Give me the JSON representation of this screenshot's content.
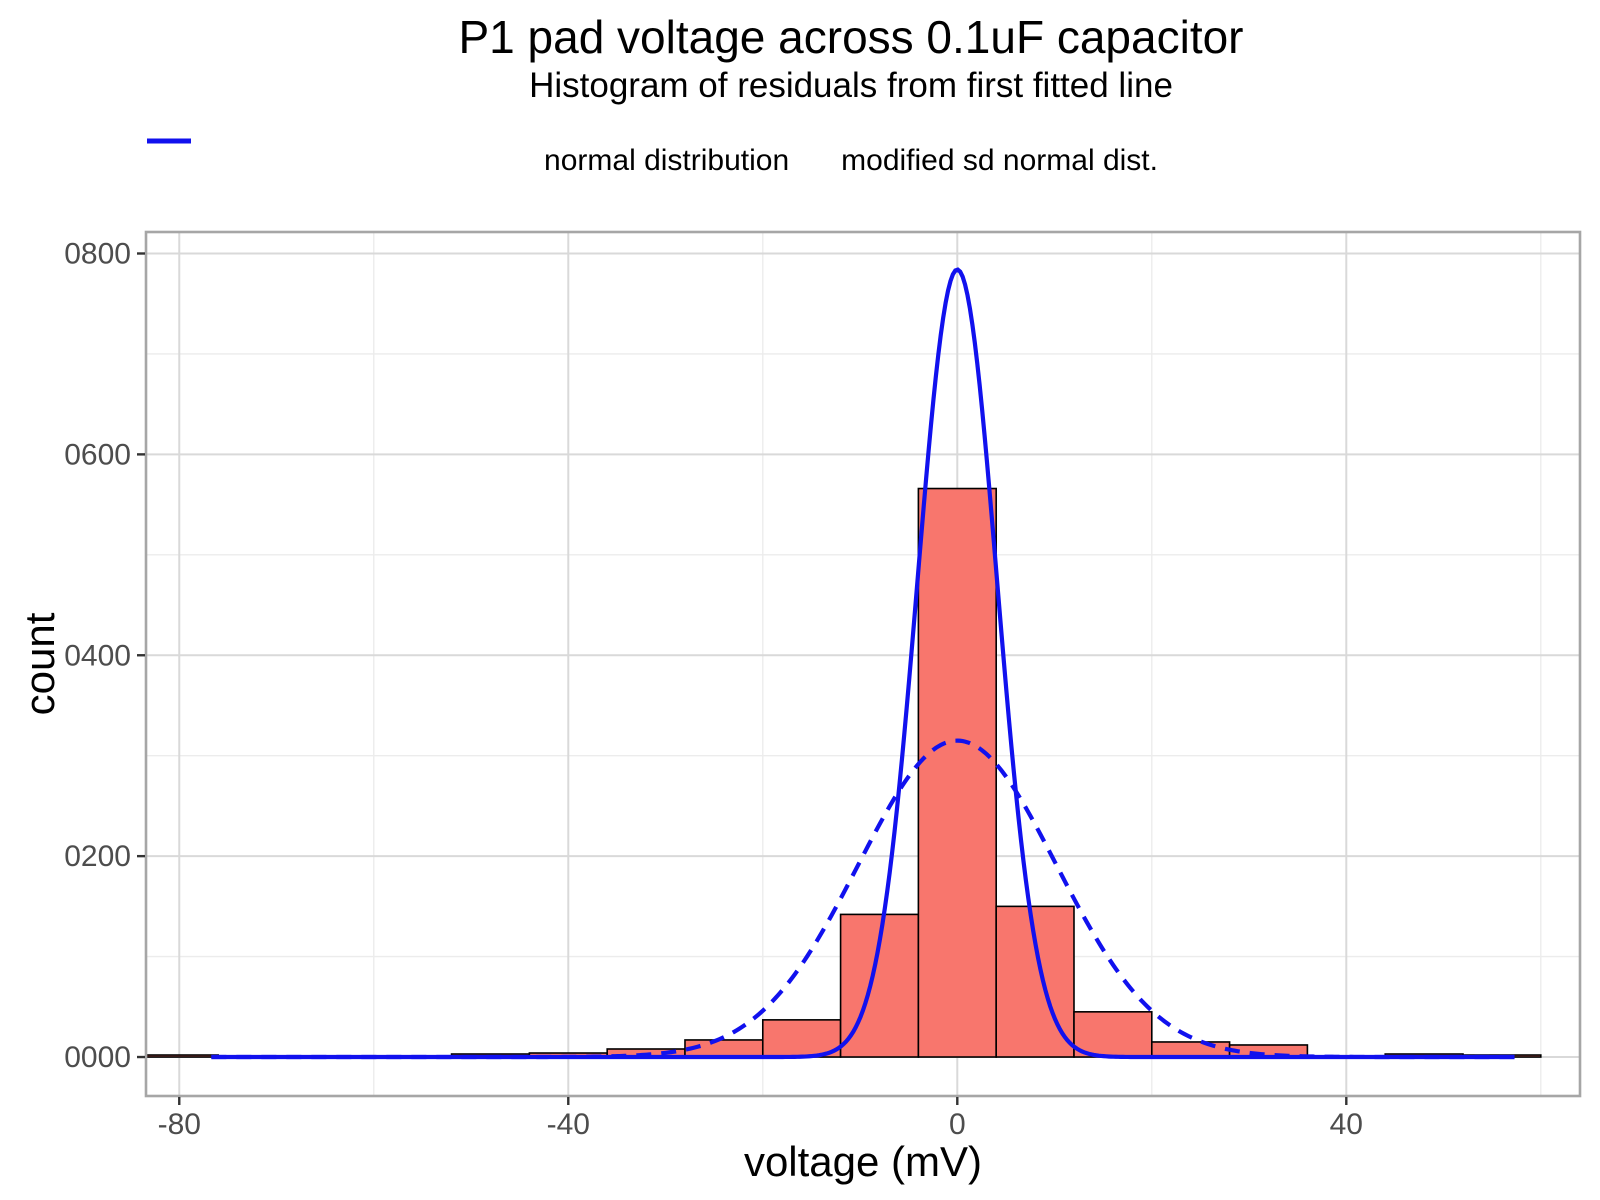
{
  "header": {
    "title": "P1 pad voltage across 0.1uF capacitor",
    "subtitle": "Histogram of residuals from first fitted line"
  },
  "legend": {
    "items": [
      {
        "label": "normal distribution",
        "line_style": "dashed"
      },
      {
        "label": "modified sd normal dist.",
        "line_style": "solid"
      }
    ]
  },
  "axes": {
    "x_title": "voltage (mV)",
    "y_title": "count"
  },
  "chart_data": {
    "type": "bar",
    "subtype": "histogram with fitted normal curves",
    "title": "P1 pad voltage across 0.1uF capacitor",
    "subtitle": "Histogram of residuals from first fitted line",
    "xlabel": "voltage (mV)",
    "ylabel": "count",
    "xlim": [
      -83.42,
      64.03
    ],
    "ylim": [
      -38.8,
      821.4
    ],
    "grid": "on",
    "legend_position": "top",
    "bin_width": 8,
    "bins": [
      {
        "start": -84,
        "end": -76,
        "count": 2
      },
      {
        "start": -76,
        "end": -68,
        "count": 1
      },
      {
        "start": -68,
        "end": -60,
        "count": 1
      },
      {
        "start": -60,
        "end": -52,
        "count": 1
      },
      {
        "start": -52,
        "end": -44,
        "count": 3
      },
      {
        "start": -44,
        "end": -36,
        "count": 4
      },
      {
        "start": -36,
        "end": -28,
        "count": 8
      },
      {
        "start": -28,
        "end": -20,
        "count": 17
      },
      {
        "start": -20,
        "end": -12,
        "count": 37
      },
      {
        "start": -12,
        "end": -4,
        "count": 142
      },
      {
        "start": -4,
        "end": 4,
        "count": 566
      },
      {
        "start": 4,
        "end": 12,
        "count": 150
      },
      {
        "start": 12,
        "end": 20,
        "count": 45
      },
      {
        "start": 20,
        "end": 28,
        "count": 15
      },
      {
        "start": 28,
        "end": 36,
        "count": 12
      },
      {
        "start": 36,
        "end": 44,
        "count": 1
      },
      {
        "start": 44,
        "end": 52,
        "count": 3
      },
      {
        "start": 52,
        "end": 60,
        "count": 2
      }
    ],
    "curves": [
      {
        "name": "normal distribution",
        "style": "dashed",
        "peak": 315,
        "mu": 0,
        "sigma": 10.2,
        "range": [
          -76.7,
          57.3
        ]
      },
      {
        "name": "modified sd normal dist.",
        "style": "solid",
        "peak": 784,
        "mu": 0,
        "sigma": 4.08,
        "range": [
          -76.7,
          57.3
        ]
      }
    ],
    "x_ticks": [
      {
        "value": -80,
        "label": "-80"
      },
      {
        "value": -40,
        "label": "-40"
      },
      {
        "value": 0,
        "label": "0"
      },
      {
        "value": 40,
        "label": "40"
      }
    ],
    "x_minor_ticks": [
      -60,
      -20,
      20,
      60
    ],
    "y_ticks": [
      {
        "value": 0,
        "label": "0000"
      },
      {
        "value": 200,
        "label": "0200"
      },
      {
        "value": 400,
        "label": "0400"
      },
      {
        "value": 600,
        "label": "0600"
      },
      {
        "value": 800,
        "label": "0800"
      }
    ],
    "y_minor_ticks": [
      100,
      300,
      500,
      700
    ],
    "colors": {
      "bar_fill": "#F8766D",
      "bar_stroke": "#000000",
      "curve_blue": "#1111EE",
      "grid_major": "#D9D9D9",
      "grid_minor": "#ECECEC",
      "panel_border": "#A6A6A6",
      "tick_mark": "#333333",
      "tick_label": "#4D4D4D"
    }
  }
}
